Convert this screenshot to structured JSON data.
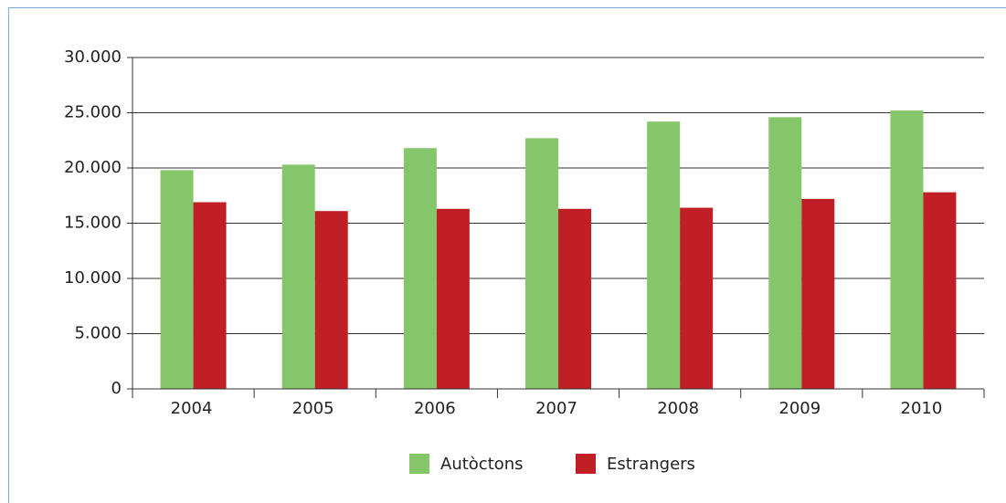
{
  "chart_data": {
    "type": "bar",
    "categories": [
      "2004",
      "2005",
      "2006",
      "2007",
      "2008",
      "2009",
      "2010"
    ],
    "series": [
      {
        "name": "Autòctons",
        "color": "#86c66b",
        "values": [
          19800,
          20300,
          21800,
          22700,
          24200,
          24600,
          25200
        ]
      },
      {
        "name": "Estrangers",
        "color": "#c01f25",
        "values": [
          16900,
          16100,
          16300,
          16300,
          16400,
          17200,
          17800
        ]
      }
    ],
    "ylim": [
      0,
      30000
    ],
    "yticks": [
      0,
      {
        "value": 5000,
        "label": "5.000"
      },
      {
        "value": 10000,
        "label": "10.000"
      },
      {
        "value": 15000,
        "label": "15.000"
      },
      {
        "value": 20000,
        "label": "20.000"
      },
      {
        "value": 25000,
        "label": "25.000"
      },
      {
        "value": 30000,
        "label": "30.000"
      }
    ],
    "grid": true,
    "legend": "bottom"
  }
}
